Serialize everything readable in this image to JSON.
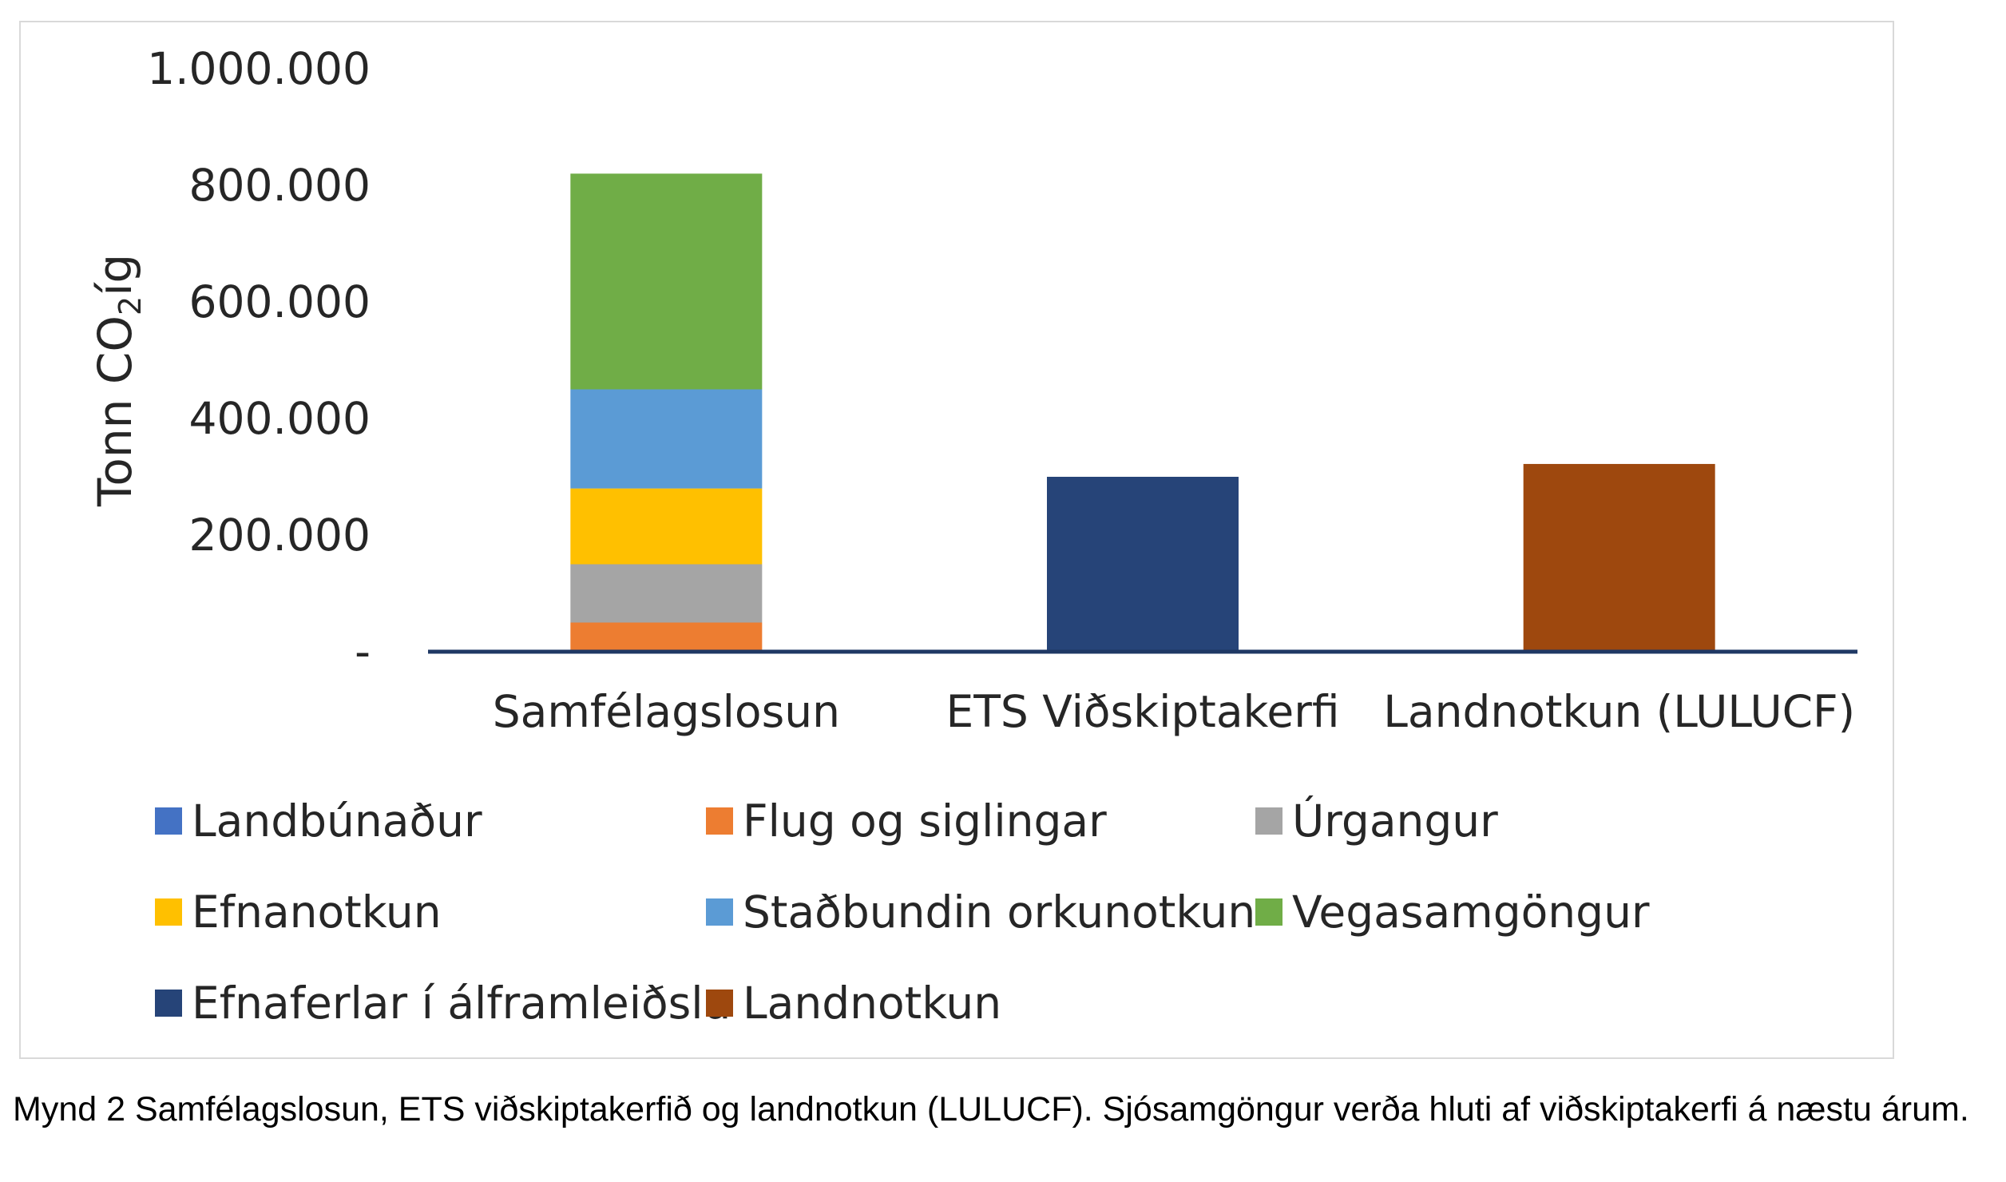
{
  "caption": "Mynd 2 Samfélagslosun, ETS viðskiptakerfið og landnotkun (LULUCF). Sjósamgöngur verða hluti af viðskiptakerfi á næstu árum.",
  "chart_data": {
    "type": "bar",
    "stacked": true,
    "ylabel_main": "Tonn CO",
    "ylabel_sub": "2",
    "ylabel_tail": "íg",
    "ylim": [
      0,
      1000000
    ],
    "yticks": [
      {
        "value": 0,
        "label": "-"
      },
      {
        "value": 200000,
        "label": "200.000"
      },
      {
        "value": 400000,
        "label": "400.000"
      },
      {
        "value": 600000,
        "label": "600.000"
      },
      {
        "value": 800000,
        "label": "800.000"
      },
      {
        "value": 1000000,
        "label": "1.000.000"
      }
    ],
    "categories": [
      "Samfélagslosun",
      "ETS Viðskiptakerfi",
      "Landnotkun (LULUCF)"
    ],
    "series": [
      {
        "name": "Landbúnaður",
        "color": "#4472C4",
        "values": [
          0,
          0,
          0
        ]
      },
      {
        "name": "Flug og siglingar",
        "color": "#ED7D31",
        "values": [
          50000,
          0,
          0
        ]
      },
      {
        "name": "Úrgangur",
        "color": "#A5A5A5",
        "values": [
          100000,
          0,
          0
        ]
      },
      {
        "name": "Efnanotkun",
        "color": "#FFC000",
        "values": [
          130000,
          0,
          0
        ]
      },
      {
        "name": "Staðbundin orkunotkun",
        "color": "#5B9BD5",
        "values": [
          170000,
          0,
          0
        ]
      },
      {
        "name": "Vegasamgöngur",
        "color": "#70AD47",
        "values": [
          370000,
          0,
          0
        ]
      },
      {
        "name": "Efnaferlar í álframleiðslu",
        "color": "#264478",
        "values": [
          0,
          300000,
          0
        ]
      },
      {
        "name": "Landnotkun",
        "color": "#9E480E",
        "values": [
          0,
          0,
          322000
        ]
      }
    ],
    "axis_color": "#1F3864",
    "grid": false,
    "legend_position": "bottom"
  }
}
